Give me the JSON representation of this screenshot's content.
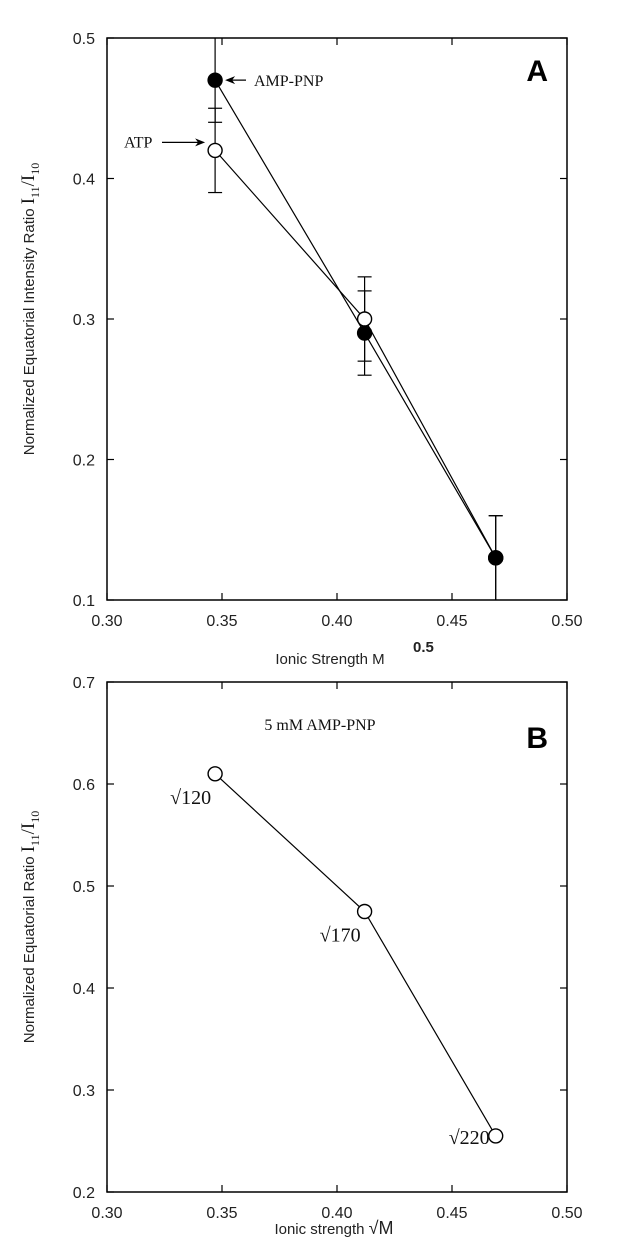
{
  "chart_data": [
    {
      "type": "line",
      "panel_label": "A",
      "xlabel": "Ionic Strength M",
      "xlabel_sup": "0.5",
      "ylabel": "Normalized Equatorial Intensity Ratio",
      "ylabel_symbol": {
        "base1": "I",
        "sub1": "11",
        "sep": "/",
        "base2": "I",
        "sub2": "10"
      },
      "xlim": [
        0.3,
        0.5
      ],
      "ylim": [
        0.1,
        0.5
      ],
      "xticks": [
        "0.30",
        "0.35",
        "0.40",
        "0.45",
        "0.50"
      ],
      "yticks": [
        "0.1",
        "0.2",
        "0.3",
        "0.4",
        "0.5"
      ],
      "grid": false,
      "series": [
        {
          "name": "AMP-PNP",
          "marker": "filled-circle",
          "x": [
            0.347,
            0.412,
            0.469
          ],
          "y": [
            0.47,
            0.29,
            0.13
          ],
          "err": [
            0.03,
            0.03,
            0.03
          ]
        },
        {
          "name": "ATP",
          "marker": "open-circle",
          "x": [
            0.347,
            0.412,
            0.469
          ],
          "y": [
            0.42,
            0.3,
            0.13
          ],
          "err": [
            0.03,
            0.03,
            0.03
          ]
        }
      ]
    },
    {
      "type": "line",
      "panel_label": "B",
      "annotation": "5 mM AMP-PNP",
      "xlabel": "Ionic strength",
      "xlabel_symbol": "√M",
      "ylabel": "Normalized Equatorial Ratio",
      "ylabel_symbol": {
        "base1": "I",
        "sub1": "11",
        "sep": "/",
        "base2": "I",
        "sub2": "10"
      },
      "xlim": [
        0.3,
        0.5
      ],
      "ylim": [
        0.2,
        0.7
      ],
      "xticks": [
        "0.30",
        "0.35",
        "0.40",
        "0.45",
        "0.50"
      ],
      "yticks": [
        "0.2",
        "0.3",
        "0.4",
        "0.5",
        "0.6",
        "0.7"
      ],
      "grid": false,
      "series": [
        {
          "marker": "open-circle",
          "x": [
            0.347,
            0.412,
            0.469
          ],
          "y": [
            0.61,
            0.475,
            0.255
          ],
          "point_labels": [
            "√120",
            "√170",
            "√220"
          ]
        }
      ]
    }
  ]
}
